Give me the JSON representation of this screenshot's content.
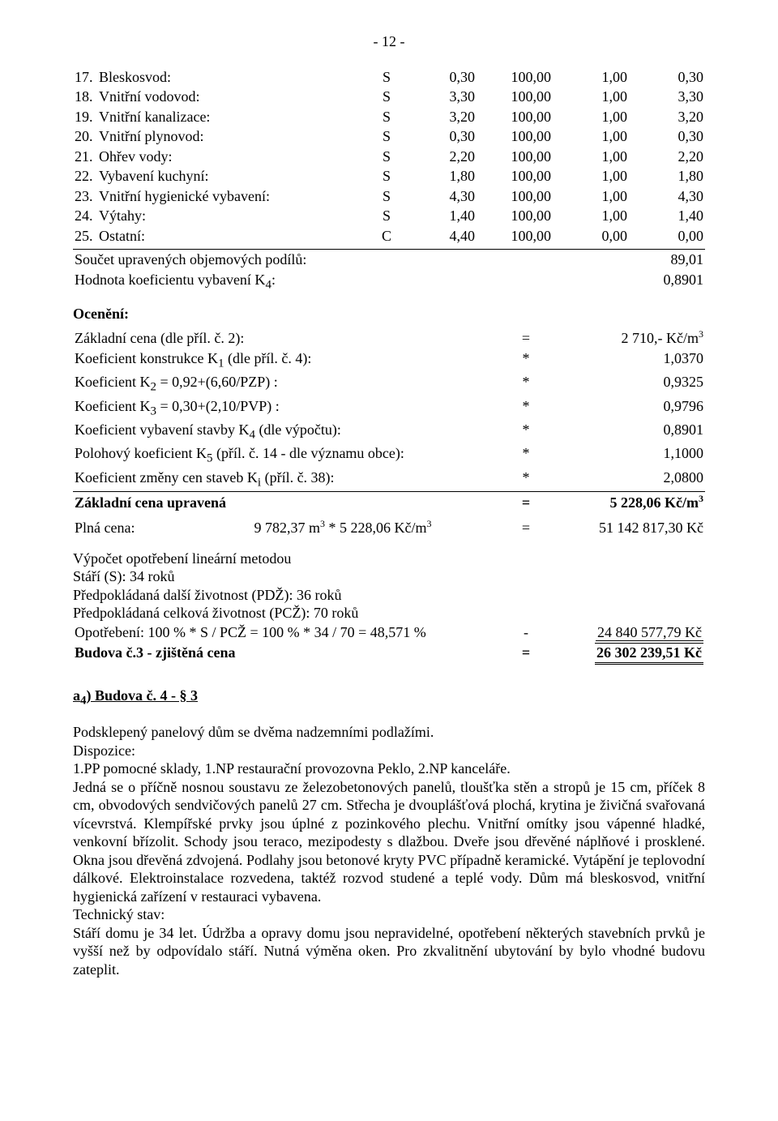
{
  "page_number": "- 12 -",
  "rows": [
    {
      "n": "17.",
      "label": "Bleskosvod:",
      "c": "S",
      "v1": "0,30",
      "v2": "100,00",
      "v3": "1,00",
      "v4": "0,30"
    },
    {
      "n": "18.",
      "label": "Vnitřní vodovod:",
      "c": "S",
      "v1": "3,30",
      "v2": "100,00",
      "v3": "1,00",
      "v4": "3,30"
    },
    {
      "n": "19.",
      "label": "Vnitřní kanalizace:",
      "c": "S",
      "v1": "3,20",
      "v2": "100,00",
      "v3": "1,00",
      "v4": "3,20"
    },
    {
      "n": "20.",
      "label": "Vnitřní plynovod:",
      "c": "S",
      "v1": "0,30",
      "v2": "100,00",
      "v3": "1,00",
      "v4": "0,30"
    },
    {
      "n": "21.",
      "label": "Ohřev vody:",
      "c": "S",
      "v1": "2,20",
      "v2": "100,00",
      "v3": "1,00",
      "v4": "2,20"
    },
    {
      "n": "22.",
      "label": "Vybavení kuchyní:",
      "c": "S",
      "v1": "1,80",
      "v2": "100,00",
      "v3": "1,00",
      "v4": "1,80"
    },
    {
      "n": "23.",
      "label": "Vnitřní hygienické vybavení:",
      "c": "S",
      "v1": "4,30",
      "v2": "100,00",
      "v3": "1,00",
      "v4": "4,30"
    },
    {
      "n": "24.",
      "label": "Výtahy:",
      "c": "S",
      "v1": "1,40",
      "v2": "100,00",
      "v3": "1,00",
      "v4": "1,40"
    },
    {
      "n": "25.",
      "label": "Ostatní:",
      "c": "C",
      "v1": "4,40",
      "v2": "100,00",
      "v3": "0,00",
      "v4": "0,00"
    }
  ],
  "sum1": {
    "label": "Součet upravených objemových podílů:",
    "value": "89,01"
  },
  "sum2": {
    "label": "Hodnota koeficientu vybavení K",
    "sub": "4",
    "suffix": ":",
    "value": "0,8901"
  },
  "oceneni_title": "Ocenění:",
  "calc": [
    {
      "l": "Základní cena (dle příl. č. 2):",
      "m": "=",
      "r": "2 710,- Kč/m",
      "sup": "3"
    },
    {
      "l": "Koeficient konstrukce K",
      "sub": "1",
      "l2": " (dle příl. č. 4):",
      "m": "*",
      "r": "1,0370"
    },
    {
      "l": "Koeficient K",
      "sub": "2",
      "l2": " = 0,92+(6,60/PZP) :",
      "m": "*",
      "r": "0,9325"
    },
    {
      "l": "Koeficient K",
      "sub": "3",
      "l2": " = 0,30+(2,10/PVP) :",
      "m": "*",
      "r": "0,9796"
    },
    {
      "l": "Koeficient vybavení stavby K",
      "sub": "4",
      "l2": " (dle výpočtu):",
      "m": "*",
      "r": "0,8901"
    },
    {
      "l": "Polohový koeficient K",
      "sub": "5",
      "l2": " (příl. č. 14 - dle významu obce):",
      "m": "*",
      "r": "1,1000"
    },
    {
      "l": "Koeficient změny cen staveb K",
      "sub": "i",
      "l2": " (příl. č. 38):",
      "m": "*",
      "r": "2,0800"
    }
  ],
  "zcu": {
    "label": "Základní cena upravená",
    "m": "=",
    "r": "5 228,06 Kč/m",
    "sup": "3"
  },
  "plna": {
    "l": "Plná cena:",
    "mid": "9 782,37 m",
    "sup1": "3",
    "mid2": " * 5 228,06 Kč/m",
    "sup2": "3",
    "m": "=",
    "r": "51 142 817,30 Kč"
  },
  "opot_title": "Výpočet opotřebení lineární metodou",
  "opot_lines": [
    "Stáří (S): 34 roků",
    "Předpokládaná další životnost (PDŽ): 36 roků",
    "Předpokládaná celková životnost (PCŽ): 70 roků"
  ],
  "opot_calc": {
    "l": "Opotřebení: 100 % * S / PCŽ = 100 % * 34 / 70 = 48,571 %",
    "m": "-",
    "r": "24 840 577,79 Kč"
  },
  "final": {
    "l": "Budova č.3 - zjištěná cena",
    "m": "=",
    "r": "26 302 239,51 Kč"
  },
  "a4_title": {
    "pre": "a",
    "sub": "4",
    "post": ") Budova č. 4 - § 3"
  },
  "para1": "Podsklepený panelový dům se dvěma  nadzemními podlažími.",
  "disp_label": "Dispozice:",
  "disp_text": "1.PP pomocné sklady, 1.NP restaurační provozovna Peklo, 2.NP kanceláře.",
  "para_long": "Jedná se o příčně nosnou soustavu ze železobetonových panelů, tloušťka stěn a stropů je 15 cm, příček 8 cm, obvodových sendvičových panelů 27 cm. Střecha je dvouplášťová plochá, krytina je živičná svařovaná vícevrstvá. Klempířské prvky jsou úplné z pozinkového plechu. Vnitřní omítky jsou vápenné hladké, venkovní břízolit. Schody jsou teraco, mezipodesty s dlažbou. Dveře jsou dřevěné náplňové i prosklené. Okna jsou dřevěná zdvojená. Podlahy jsou betonové kryty PVC případně keramické. Vytápění je teplovodní dálkové. Elektroinstalace rozvedena, taktéž rozvod studené a teplé vody. Dům má bleskosvod, vnitřní hygienická zařízení v restauraci vybavena.",
  "tech_label": "Technický stav:",
  "tech_text": "Stáří domu je 34 let. Údržba a opravy domu jsou nepravidelné, opotřebení některých stavebních prvků je vyšší než by odpovídalo stáří. Nutná výměna oken. Pro zkvalitnění ubytování by bylo vhodné budovu zateplit."
}
